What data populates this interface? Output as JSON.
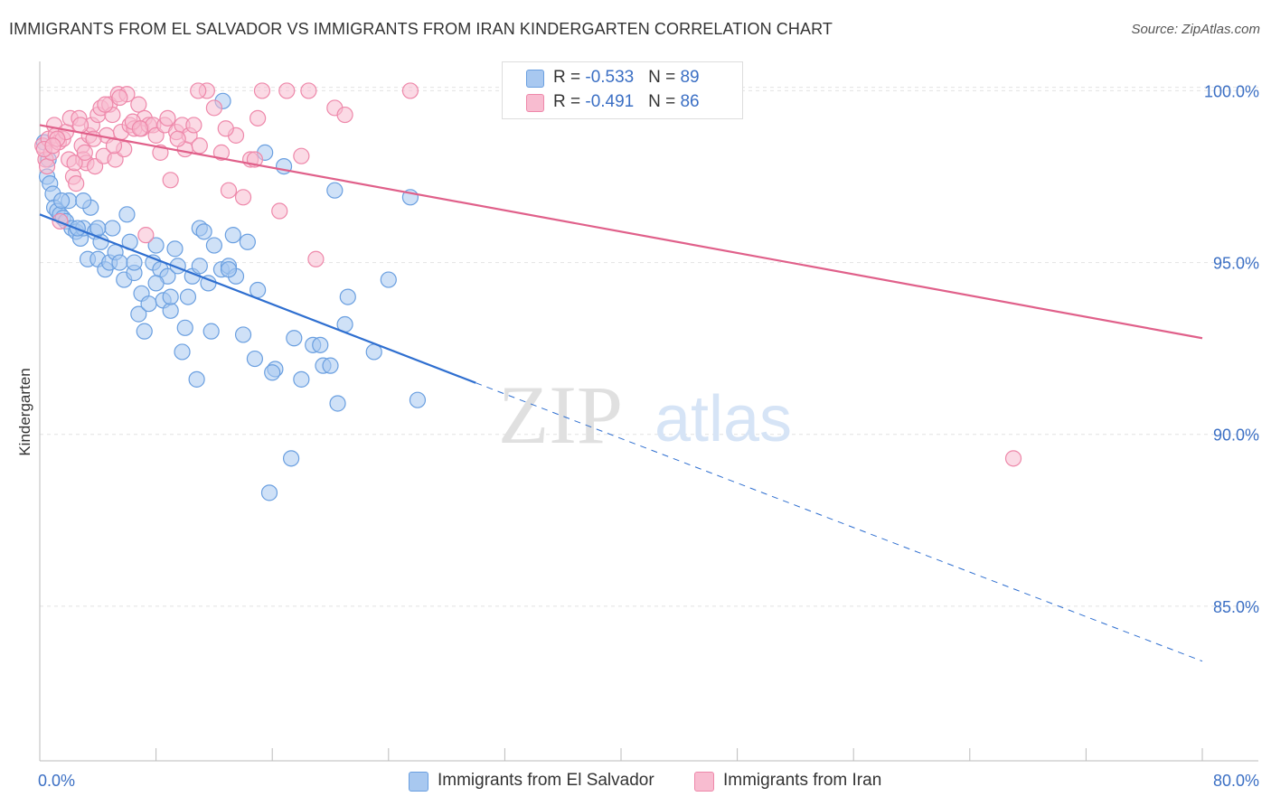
{
  "title": "IMMIGRANTS FROM EL SALVADOR VS IMMIGRANTS FROM IRAN KINDERGARTEN CORRELATION CHART",
  "source": "Source: ZipAtlas.com",
  "watermark": {
    "zip": "ZIP",
    "atlas": "atlas"
  },
  "legend": {
    "rows": [
      {
        "r_label": "R = ",
        "r_value": "-0.533",
        "n_label": "N = ",
        "n_value": "89",
        "color": "#a8c8f0",
        "border": "#6a9fe0"
      },
      {
        "r_label": "R = ",
        "r_value": "-0.491",
        "n_label": "N = ",
        "n_value": "86",
        "color": "#f8bcd0",
        "border": "#ee88aa"
      }
    ]
  },
  "chart_data": {
    "type": "scatter",
    "title": "IMMIGRANTS FROM EL SALVADOR VS IMMIGRANTS FROM IRAN KINDERGARTEN CORRELATION CHART",
    "xlabel": "",
    "ylabel": "Kindergarten",
    "xlim": [
      0,
      80
    ],
    "ylim": [
      80.5,
      100.8
    ],
    "x_tick_labels": [
      "0.0%",
      "80.0%"
    ],
    "y_ticks": [
      85,
      90,
      95,
      100
    ],
    "y_tick_labels": [
      "85.0%",
      "90.0%",
      "95.0%",
      "100.0%"
    ],
    "grid": true,
    "legend_position": "top-center",
    "series": [
      {
        "name": "Immigrants from El Salvador",
        "color": "#6a9fe0",
        "fill": "#a8c8f0",
        "line_color": "#2f6fd0",
        "trend": {
          "x0": 0,
          "y0": 96.4,
          "x1": 30,
          "y1": 91.5,
          "dash_to_x": 80,
          "dash_to_y": 83.4
        },
        "points": [
          [
            0.3,
            98.5
          ],
          [
            0.5,
            97.5
          ],
          [
            0.7,
            97.3
          ],
          [
            0.9,
            97.0
          ],
          [
            1.0,
            96.6
          ],
          [
            1.2,
            96.5
          ],
          [
            1.4,
            96.4
          ],
          [
            1.6,
            96.3
          ],
          [
            1.8,
            96.2
          ],
          [
            2.0,
            96.8
          ],
          [
            2.2,
            96.0
          ],
          [
            2.5,
            95.9
          ],
          [
            2.8,
            95.7
          ],
          [
            3.0,
            96.0
          ],
          [
            3.3,
            95.1
          ],
          [
            3.5,
            96.6
          ],
          [
            3.8,
            95.9
          ],
          [
            4.0,
            95.1
          ],
          [
            4.2,
            95.6
          ],
          [
            4.5,
            94.8
          ],
          [
            4.8,
            95.0
          ],
          [
            5.0,
            96.0
          ],
          [
            5.2,
            95.3
          ],
          [
            5.5,
            95.0
          ],
          [
            5.8,
            94.5
          ],
          [
            6.0,
            96.4
          ],
          [
            6.2,
            95.6
          ],
          [
            6.5,
            94.7
          ],
          [
            6.8,
            93.5
          ],
          [
            7.0,
            94.1
          ],
          [
            7.2,
            93.0
          ],
          [
            7.5,
            93.8
          ],
          [
            7.8,
            95.0
          ],
          [
            8.0,
            95.5
          ],
          [
            8.3,
            94.8
          ],
          [
            8.5,
            93.9
          ],
          [
            8.8,
            94.6
          ],
          [
            9.0,
            93.6
          ],
          [
            9.3,
            95.4
          ],
          [
            9.5,
            94.9
          ],
          [
            9.8,
            92.4
          ],
          [
            10.0,
            93.1
          ],
          [
            10.2,
            94.0
          ],
          [
            10.5,
            94.6
          ],
          [
            10.8,
            91.6
          ],
          [
            11.0,
            96.0
          ],
          [
            11.3,
            95.9
          ],
          [
            11.6,
            94.4
          ],
          [
            11.8,
            93.0
          ],
          [
            12.0,
            95.5
          ],
          [
            12.5,
            94.8
          ],
          [
            13.0,
            94.9
          ],
          [
            13.3,
            95.8
          ],
          [
            13.5,
            94.6
          ],
          [
            14.0,
            92.9
          ],
          [
            14.3,
            95.6
          ],
          [
            14.8,
            92.2
          ],
          [
            15.0,
            94.2
          ],
          [
            15.5,
            98.2
          ],
          [
            15.8,
            88.3
          ],
          [
            16.2,
            91.9
          ],
          [
            16.8,
            97.8
          ],
          [
            17.3,
            89.3
          ],
          [
            17.5,
            92.8
          ],
          [
            18.0,
            91.6
          ],
          [
            18.8,
            92.6
          ],
          [
            19.3,
            92.6
          ],
          [
            19.5,
            92.0
          ],
          [
            20.0,
            92.0
          ],
          [
            20.3,
            97.1
          ],
          [
            20.5,
            90.9
          ],
          [
            21.0,
            93.2
          ],
          [
            21.2,
            94.0
          ],
          [
            23.0,
            92.4
          ],
          [
            24.0,
            94.5
          ],
          [
            25.5,
            96.9
          ],
          [
            26.0,
            91.0
          ],
          [
            12.6,
            99.7
          ],
          [
            3.0,
            96.8
          ],
          [
            1.5,
            96.8
          ],
          [
            4.0,
            96.0
          ],
          [
            6.5,
            95.0
          ],
          [
            8.0,
            94.4
          ],
          [
            9.0,
            94.0
          ],
          [
            11.0,
            94.9
          ],
          [
            13.0,
            94.8
          ],
          [
            16.0,
            91.8
          ],
          [
            0.6,
            98.0
          ],
          [
            2.6,
            96.0
          ]
        ]
      },
      {
        "name": "Immigrants from Iran",
        "color": "#ee88aa",
        "fill": "#f8bcd0",
        "line_color": "#e0608a",
        "trend": {
          "x0": 0,
          "y0": 99.0,
          "x1": 80,
          "y1": 92.8
        },
        "points": [
          [
            0.2,
            98.4
          ],
          [
            0.4,
            98.0
          ],
          [
            0.5,
            97.8
          ],
          [
            0.6,
            98.6
          ],
          [
            0.8,
            98.2
          ],
          [
            1.0,
            99.0
          ],
          [
            1.1,
            98.7
          ],
          [
            1.3,
            98.5
          ],
          [
            1.4,
            96.2
          ],
          [
            1.6,
            98.6
          ],
          [
            1.8,
            98.8
          ],
          [
            2.0,
            98.0
          ],
          [
            2.1,
            99.2
          ],
          [
            2.3,
            97.5
          ],
          [
            2.5,
            97.3
          ],
          [
            2.7,
            99.2
          ],
          [
            2.9,
            98.4
          ],
          [
            3.0,
            98.0
          ],
          [
            3.2,
            97.9
          ],
          [
            3.4,
            98.7
          ],
          [
            3.6,
            99.0
          ],
          [
            3.8,
            97.8
          ],
          [
            4.0,
            99.3
          ],
          [
            4.2,
            99.5
          ],
          [
            4.4,
            98.1
          ],
          [
            4.6,
            98.7
          ],
          [
            4.8,
            99.6
          ],
          [
            5.0,
            99.3
          ],
          [
            5.2,
            98.0
          ],
          [
            5.4,
            99.9
          ],
          [
            5.6,
            98.8
          ],
          [
            5.8,
            98.3
          ],
          [
            6.0,
            99.9
          ],
          [
            6.2,
            99.0
          ],
          [
            6.5,
            98.9
          ],
          [
            6.8,
            99.6
          ],
          [
            7.0,
            98.9
          ],
          [
            7.2,
            99.2
          ],
          [
            7.5,
            99.0
          ],
          [
            7.8,
            99.0
          ],
          [
            8.0,
            98.7
          ],
          [
            8.3,
            98.2
          ],
          [
            8.6,
            99.0
          ],
          [
            9.0,
            97.4
          ],
          [
            9.4,
            98.8
          ],
          [
            9.8,
            99.0
          ],
          [
            10.0,
            98.3
          ],
          [
            10.3,
            98.7
          ],
          [
            10.6,
            99.0
          ],
          [
            11.0,
            98.4
          ],
          [
            11.5,
            100.0
          ],
          [
            12.0,
            99.5
          ],
          [
            12.5,
            98.2
          ],
          [
            13.0,
            97.1
          ],
          [
            13.5,
            98.7
          ],
          [
            14.0,
            96.9
          ],
          [
            14.5,
            98.0
          ],
          [
            15.0,
            99.2
          ],
          [
            15.3,
            100.0
          ],
          [
            16.5,
            96.5
          ],
          [
            17.0,
            100.0
          ],
          [
            18.0,
            98.1
          ],
          [
            18.5,
            100.0
          ],
          [
            19.0,
            95.1
          ],
          [
            20.3,
            99.5
          ],
          [
            21.0,
            99.3
          ],
          [
            25.5,
            100.0
          ],
          [
            67.0,
            89.3
          ],
          [
            7.3,
            95.8
          ],
          [
            0.3,
            98.3
          ],
          [
            1.2,
            98.6
          ],
          [
            2.8,
            99.0
          ],
          [
            3.7,
            98.6
          ],
          [
            4.5,
            99.6
          ],
          [
            5.5,
            99.8
          ],
          [
            6.4,
            99.1
          ],
          [
            8.8,
            99.2
          ],
          [
            10.9,
            100.0
          ],
          [
            12.8,
            98.9
          ],
          [
            14.8,
            98.0
          ],
          [
            0.9,
            98.4
          ],
          [
            2.4,
            97.9
          ],
          [
            3.1,
            98.2
          ],
          [
            5.1,
            98.4
          ],
          [
            6.9,
            98.9
          ],
          [
            9.5,
            98.6
          ]
        ]
      }
    ]
  },
  "bottom_legend": [
    {
      "label": "Immigrants from El Salvador",
      "color": "#a8c8f0",
      "border": "#6a9fe0"
    },
    {
      "label": "Immigrants from Iran",
      "color": "#f8bcd0",
      "border": "#ee88aa"
    }
  ]
}
